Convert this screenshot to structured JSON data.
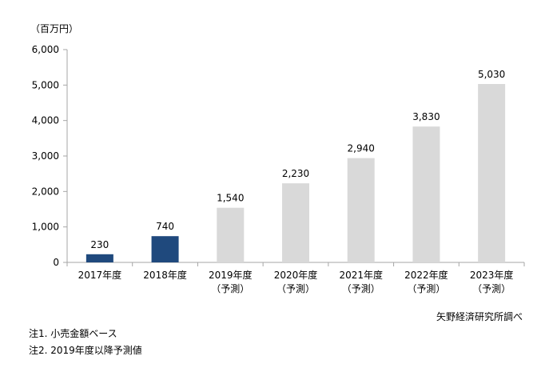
{
  "unit_label": "（百万円）",
  "source": "矢野経済研究所調べ",
  "notes": [
    "注1. 小売金額ベース",
    "注2. 2019年度以降予測値"
  ],
  "colors": {
    "actual": "#1f497d",
    "forecast": "#d9d9d9",
    "axis": "#a6a6a6"
  },
  "chart_data": {
    "type": "bar",
    "categories": [
      [
        "2017年度"
      ],
      [
        "2018年度"
      ],
      [
        "2019年度",
        "（予測）"
      ],
      [
        "2020年度",
        "（予測）"
      ],
      [
        "2021年度",
        "（予測）"
      ],
      [
        "2022年度",
        "（予測）"
      ],
      [
        "2023年度",
        "（予測）"
      ]
    ],
    "values": [
      230,
      740,
      1540,
      2230,
      2940,
      3830,
      5030
    ],
    "data_labels": [
      "230",
      "740",
      "1,540",
      "2,230",
      "2,940",
      "3,830",
      "5,030"
    ],
    "forecast": [
      false,
      false,
      true,
      true,
      true,
      true,
      true
    ],
    "ylim": [
      0,
      6000
    ],
    "yticks": [
      0,
      1000,
      2000,
      3000,
      4000,
      5000,
      6000
    ],
    "ytick_labels": [
      "0",
      "1,000",
      "2,000",
      "3,000",
      "4,000",
      "5,000",
      "6,000"
    ],
    "grid": false,
    "legend": "none"
  }
}
